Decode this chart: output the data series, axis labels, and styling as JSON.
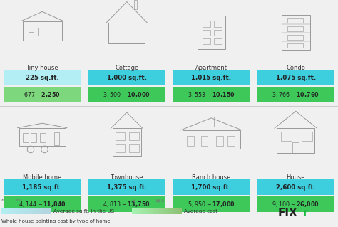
{
  "background_color": "#f0f0f0",
  "title": "Whole house painting cost by type of home",
  "homes": [
    {
      "name": "Tiny house",
      "sqft": "225 sq.ft.",
      "cost": "$677 - $2,250",
      "sqft_color": "#b2eef4",
      "cost_color": "#7dd87d"
    },
    {
      "name": "Cottage",
      "sqft": "1,000 sq.ft.",
      "cost": "$3,500 - $10,000",
      "sqft_color": "#3ecfdf",
      "cost_color": "#3ec85a"
    },
    {
      "name": "Apartment",
      "sqft": "1,015 sq.ft.",
      "cost": "$3,553 - $10,150",
      "sqft_color": "#3ecfdf",
      "cost_color": "#3ec85a"
    },
    {
      "name": "Condo",
      "sqft": "1,075 sq.ft.",
      "cost": "$3,766 - $10,760",
      "sqft_color": "#3ecfdf",
      "cost_color": "#3ec85a"
    },
    {
      "name": "Mobile home",
      "sqft": "1,185 sq.ft.",
      "cost": "$4,144 - $11,840",
      "sqft_color": "#3ecfdf",
      "cost_color": "#3ec85a"
    },
    {
      "name": "Townhouse",
      "sqft": "1,375 sq.ft.",
      "cost": "$4,813 - $13,750",
      "sqft_color": "#3ecfdf",
      "cost_color": "#3ec85a"
    },
    {
      "name": "Ranch house",
      "sqft": "1,700 sq.ft.",
      "cost": "$5,950 - $17,000",
      "sqft_color": "#3ecfdf",
      "cost_color": "#3ec85a"
    },
    {
      "name": "House",
      "sqft": "2,600 sq.ft.",
      "cost": "$9,100 - $26,000",
      "sqft_color": "#3ecfdf",
      "cost_color": "#3ec85a"
    }
  ],
  "ncols": 4,
  "nrows": 2,
  "fixr_black": "#222222",
  "fixr_green": "#22bb44",
  "text_dark": "#333333",
  "divider_color": "#cccccc"
}
